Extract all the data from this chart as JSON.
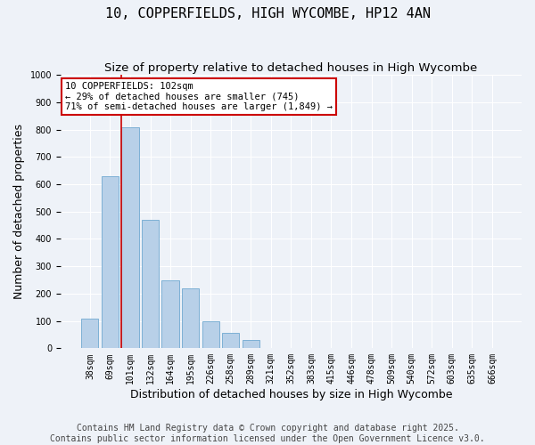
{
  "title": "10, COPPERFIELDS, HIGH WYCOMBE, HP12 4AN",
  "subtitle": "Size of property relative to detached houses in High Wycombe",
  "xlabel": "Distribution of detached houses by size in High Wycombe",
  "ylabel": "Number of detached properties",
  "categories": [
    "38sqm",
    "69sqm",
    "101sqm",
    "132sqm",
    "164sqm",
    "195sqm",
    "226sqm",
    "258sqm",
    "289sqm",
    "321sqm",
    "352sqm",
    "383sqm",
    "415sqm",
    "446sqm",
    "478sqm",
    "509sqm",
    "540sqm",
    "572sqm",
    "603sqm",
    "635sqm",
    "666sqm"
  ],
  "values": [
    110,
    630,
    810,
    470,
    250,
    220,
    100,
    55,
    30,
    0,
    0,
    0,
    0,
    0,
    0,
    0,
    0,
    0,
    0,
    0,
    0
  ],
  "highlight_index": 2,
  "bar_color": "#b8d0e8",
  "bar_edgecolor": "#6fa8d0",
  "highlight_line_color": "#cc0000",
  "ylim": [
    0,
    1000
  ],
  "yticks": [
    0,
    100,
    200,
    300,
    400,
    500,
    600,
    700,
    800,
    900,
    1000
  ],
  "annotation_text": "10 COPPERFIELDS: 102sqm\n← 29% of detached houses are smaller (745)\n71% of semi-detached houses are larger (1,849) →",
  "annotation_box_facecolor": "#ffffff",
  "annotation_box_edgecolor": "#cc0000",
  "footer_line1": "Contains HM Land Registry data © Crown copyright and database right 2025.",
  "footer_line2": "Contains public sector information licensed under the Open Government Licence v3.0.",
  "background_color": "#eef2f8",
  "plot_background_color": "#eef2f8",
  "title_fontsize": 11,
  "subtitle_fontsize": 9.5,
  "ylabel_fontsize": 9,
  "xlabel_fontsize": 9,
  "tick_fontsize": 7,
  "annot_fontsize": 7.5,
  "footer_fontsize": 7
}
